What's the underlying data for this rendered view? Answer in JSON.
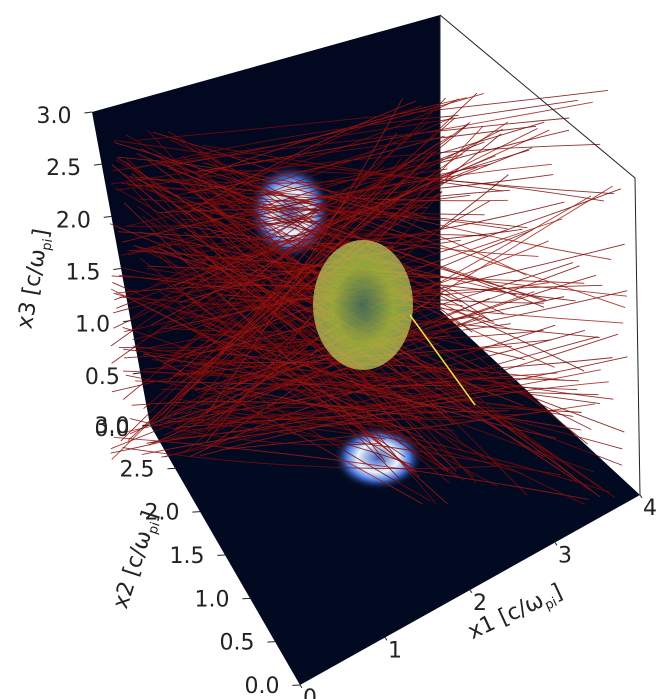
{
  "chart_data": {
    "type": "volume",
    "xlabel": [
      "x1 [c/ω",
      "pi",
      "]"
    ],
    "ylabel": [
      "x2 [c/ω",
      "pi",
      "]"
    ],
    "zlabel": [
      "x3 [c/ω",
      "pi",
      "]"
    ],
    "xlim": [
      0,
      4
    ],
    "xticks": [
      0,
      1,
      2,
      3,
      4
    ],
    "ylim": [
      0,
      3
    ],
    "yticks": [
      {
        "value": 0,
        "label": "0.0"
      },
      {
        "value": 0.5,
        "label": "0.5"
      },
      {
        "value": 1,
        "label": "1.0"
      },
      {
        "value": 1.5,
        "label": "1.5"
      },
      {
        "value": 2,
        "label": "2.0"
      },
      {
        "value": 2.5,
        "label": "2.5"
      },
      {
        "value": 3,
        "label": "3.0"
      }
    ],
    "zlim": [
      0,
      3
    ],
    "zticks": [
      {
        "value": 0,
        "label": "0.0"
      },
      {
        "value": 0.5,
        "label": "0.5"
      },
      {
        "value": 1,
        "label": "1.0"
      },
      {
        "value": 1.5,
        "label": "1.5"
      },
      {
        "value": 2,
        "label": "2.0"
      },
      {
        "value": 2.5,
        "label": "2.5"
      },
      {
        "value": 3,
        "label": "3.0"
      }
    ]
  }
}
